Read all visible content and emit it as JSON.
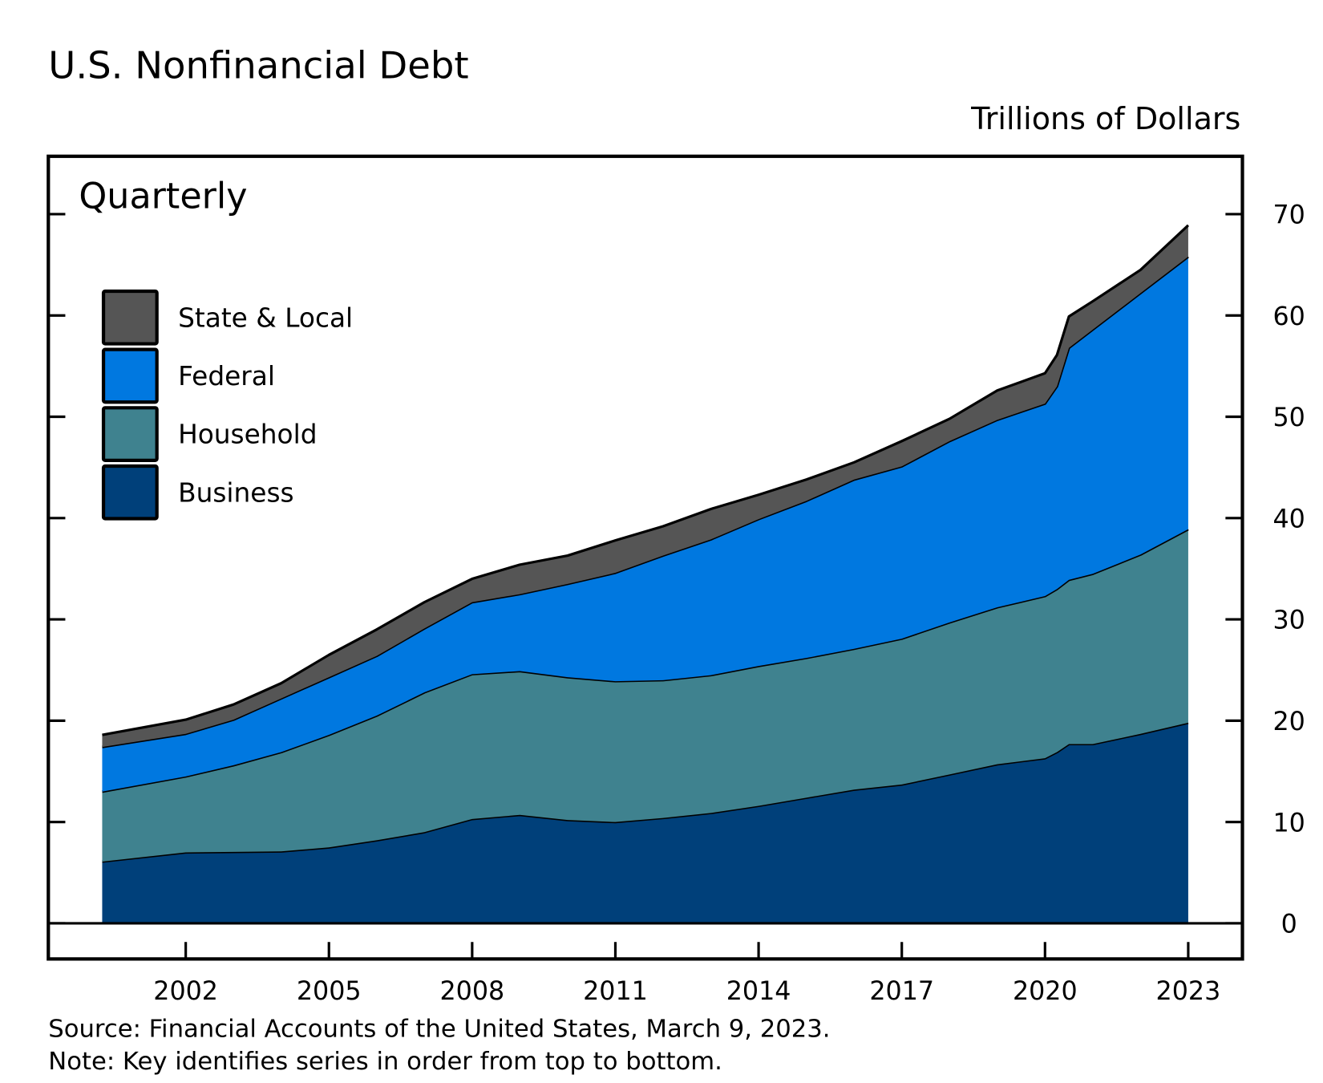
{
  "chart_data": {
    "type": "area",
    "stacked": true,
    "title": "U.S. Nonfinancial Debt",
    "ylabel": "Trillions of Dollars",
    "annotation": "Quarterly",
    "ylim": [
      0,
      70
    ],
    "yticks": [
      0,
      10,
      20,
      30,
      40,
      50,
      60,
      70
    ],
    "xticks": [
      "2002",
      "2005",
      "2008",
      "2011",
      "2014",
      "2017",
      "2020",
      "2023"
    ],
    "xlim": [
      2000.25,
      2023
    ],
    "legend_position": "top-left",
    "x": [
      2000.25,
      2002,
      2003,
      2004,
      2005,
      2006,
      2007,
      2008,
      2009,
      2010,
      2011,
      2012,
      2013,
      2014,
      2015,
      2016,
      2017,
      2018,
      2019,
      2020,
      2020.25,
      2020.5,
      2021,
      2022,
      2023
    ],
    "series": [
      {
        "name": "Business",
        "color": "#00407a",
        "values": [
          6.1,
          7.0,
          7.05,
          7.1,
          7.5,
          8.2,
          9.0,
          10.3,
          10.7,
          10.2,
          10.0,
          10.4,
          10.9,
          11.6,
          12.4,
          13.2,
          13.7,
          14.7,
          15.7,
          16.3,
          16.9,
          17.7,
          17.7,
          18.7,
          19.8
        ]
      },
      {
        "name": "Household",
        "color": "#3f828f",
        "values": [
          6.9,
          7.5,
          8.55,
          9.8,
          11.1,
          12.3,
          13.8,
          14.3,
          14.2,
          14.1,
          13.9,
          13.6,
          13.6,
          13.8,
          13.8,
          13.9,
          14.4,
          15.0,
          15.5,
          16.0,
          16.1,
          16.2,
          16.8,
          17.7,
          19.1
        ]
      },
      {
        "name": "Federal",
        "color": "#0078e0",
        "values": [
          4.4,
          4.2,
          4.5,
          5.3,
          5.7,
          5.9,
          6.3,
          7.1,
          7.6,
          9.2,
          10.7,
          12.3,
          13.4,
          14.5,
          15.5,
          16.7,
          17.0,
          17.9,
          18.5,
          19.0,
          20.0,
          22.9,
          24.1,
          25.8,
          26.9
        ]
      },
      {
        "name": "State & Local",
        "color": "#555555",
        "values": [
          1.2,
          1.4,
          1.5,
          1.5,
          2.2,
          2.6,
          2.6,
          2.3,
          2.9,
          2.8,
          3.2,
          2.9,
          3.0,
          2.4,
          2.1,
          1.7,
          2.5,
          2.2,
          2.9,
          3.0,
          3.1,
          3.1,
          2.8,
          2.3,
          3.1
        ]
      }
    ],
    "legend_order": [
      "State & Local",
      "Federal",
      "Household",
      "Business"
    ]
  },
  "footer": {
    "source": "Source: Financial Accounts of the United States, March 9, 2023.",
    "note": "Note: Key identifies series in order from top to bottom."
  }
}
